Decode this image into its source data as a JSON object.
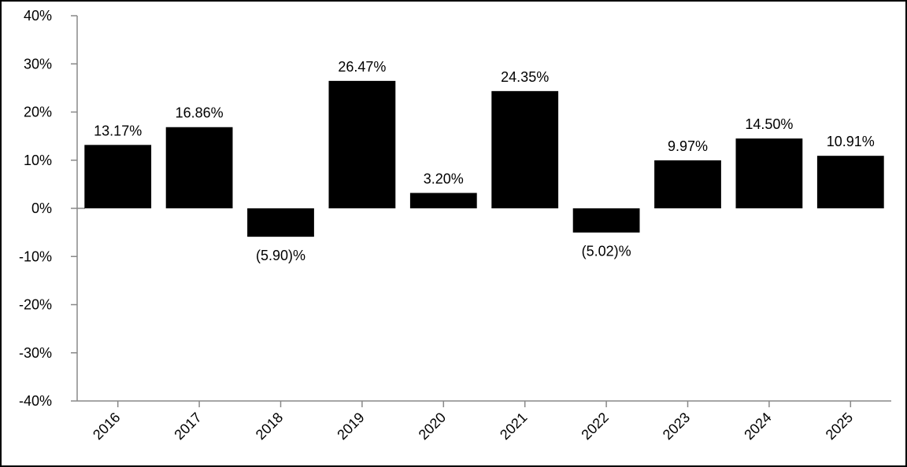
{
  "chart_data": {
    "type": "bar",
    "title": "",
    "xlabel": "",
    "ylabel": "",
    "categories": [
      "2016",
      "2017",
      "2018",
      "2019",
      "2020",
      "2021",
      "2022",
      "2023",
      "2024",
      "2025"
    ],
    "values": [
      13.17,
      16.86,
      -5.9,
      26.47,
      3.2,
      24.35,
      -5.02,
      9.97,
      14.5,
      10.91
    ],
    "value_labels": [
      "13.17%",
      "16.86%",
      "(5.90)%",
      "26.47%",
      "3.20%",
      "24.35%",
      "(5.02)%",
      "9.97%",
      "14.50%",
      "10.91%"
    ],
    "ylim": [
      -40,
      40
    ],
    "yticks": [
      40,
      30,
      20,
      10,
      0,
      -10,
      -20,
      -30,
      -40
    ],
    "ytick_labels": [
      "40%",
      "30%",
      "20%",
      "10%",
      "0%",
      "-10%",
      "-20%",
      "-30%",
      "-40%"
    ],
    "grid": false,
    "legend": "none",
    "colors": {
      "bar": "#000000",
      "axis": "#888888",
      "text": "#000000"
    }
  }
}
